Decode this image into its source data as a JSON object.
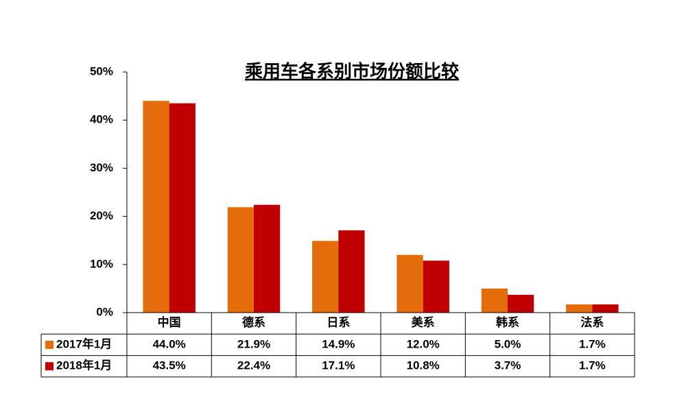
{
  "chart_data": {
    "type": "bar",
    "title": "乘用车各系别市场份额比较",
    "categories": [
      "中国",
      "德系",
      "日系",
      "美系",
      "韩系",
      "法系"
    ],
    "series": [
      {
        "name": "2017年1月",
        "color": "#e46c0a",
        "values": [
          44.0,
          21.9,
          14.9,
          12.0,
          5.0,
          1.7
        ],
        "value_labels": [
          "44.0%",
          "21.9%",
          "14.9%",
          "12.0%",
          "5.0%",
          "1.7%"
        ]
      },
      {
        "name": "2018年1月",
        "color": "#c00000",
        "values": [
          43.5,
          22.4,
          17.1,
          10.8,
          3.7,
          1.7
        ],
        "value_labels": [
          "43.5%",
          "22.4%",
          "17.1%",
          "10.8%",
          "3.7%",
          "1.7%"
        ]
      }
    ],
    "ylim": [
      0,
      50
    ],
    "yticks": [
      {
        "value": 0,
        "label": "0%"
      },
      {
        "value": 10,
        "label": "10%"
      },
      {
        "value": 20,
        "label": "20%"
      },
      {
        "value": 30,
        "label": "30%"
      },
      {
        "value": 40,
        "label": "40%"
      },
      {
        "value": 50,
        "label": "50%"
      }
    ]
  }
}
